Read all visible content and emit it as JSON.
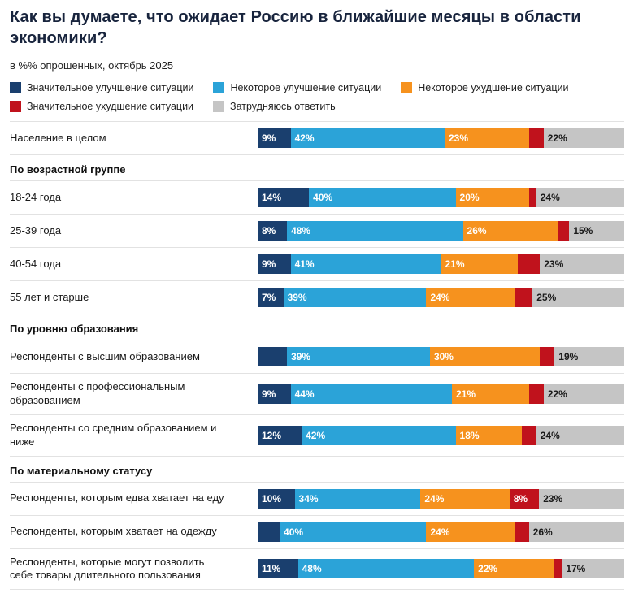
{
  "title": "Как вы думаете, что ожидает Россию в ближайшие месяцы в области экономики?",
  "subtitle": "в %% опрошенных, октябрь 2025",
  "legend": [
    {
      "label": "Значительное улучшение ситуации",
      "color": "#1a3f6e",
      "text_color": "#ffffff"
    },
    {
      "label": "Некоторое улучшение ситуации",
      "color": "#2ba3d8",
      "text_color": "#ffffff"
    },
    {
      "label": "Некоторое ухудшение ситуации",
      "color": "#f6921e",
      "text_color": "#ffffff"
    },
    {
      "label": "Значительное ухудшение ситуации",
      "color": "#c0121c",
      "text_color": "#ffffff"
    },
    {
      "label": "Затрудняюсь ответить",
      "color": "#c5c5c5",
      "text_color": "#1a1a1a"
    }
  ],
  "chart_data": {
    "type": "bar",
    "variant": "horizontal-stacked",
    "unit": "% of respondents",
    "xlim": [
      0,
      100
    ],
    "grid": false,
    "legend_position": "top",
    "series": [
      "Значительное улучшение ситуации",
      "Некоторое улучшение ситуации",
      "Некоторое ухудшение ситуации",
      "Значительное ухудшение ситуации",
      "Затрудняюсь ответить"
    ],
    "rows": [
      {
        "kind": "bar",
        "label": "Население в целом",
        "values": [
          9,
          42,
          23,
          4,
          22
        ],
        "segment_labels": [
          "9%",
          "42%",
          "23%",
          "",
          "22%"
        ]
      },
      {
        "kind": "section",
        "label": "По возрастной группе"
      },
      {
        "kind": "bar",
        "label": "18-24 года",
        "values": [
          14,
          40,
          20,
          2,
          24
        ],
        "segment_labels": [
          "14%",
          "40%",
          "20%",
          "",
          "24%"
        ]
      },
      {
        "kind": "bar",
        "label": "25-39 года",
        "values": [
          8,
          48,
          26,
          3,
          15
        ],
        "segment_labels": [
          "8%",
          "48%",
          "26%",
          "",
          "15%"
        ]
      },
      {
        "kind": "bar",
        "label": "40-54 года",
        "values": [
          9,
          41,
          21,
          6,
          23
        ],
        "segment_labels": [
          "9%",
          "41%",
          "21%",
          "",
          "23%"
        ]
      },
      {
        "kind": "bar",
        "label": "55 лет и старше",
        "values": [
          7,
          39,
          24,
          5,
          25
        ],
        "segment_labels": [
          "7%",
          "39%",
          "24%",
          "",
          "25%"
        ]
      },
      {
        "kind": "section",
        "label": "По уровню образования"
      },
      {
        "kind": "bar",
        "label": "Респонденты с высшим образованием",
        "values": [
          8,
          39,
          30,
          4,
          19
        ],
        "segment_labels": [
          "",
          "39%",
          "30%",
          "",
          "19%"
        ]
      },
      {
        "kind": "bar",
        "label": "Респонденты с профессиональным образованием",
        "values": [
          9,
          44,
          21,
          4,
          22
        ],
        "segment_labels": [
          "9%",
          "44%",
          "21%",
          "",
          "22%"
        ]
      },
      {
        "kind": "bar",
        "label": "Респонденты со средним образованием и ниже",
        "values": [
          12,
          42,
          18,
          4,
          24
        ],
        "segment_labels": [
          "12%",
          "42%",
          "18%",
          "",
          "24%"
        ]
      },
      {
        "kind": "section",
        "label": "По материальному статусу"
      },
      {
        "kind": "bar",
        "label": "Респонденты, которым едва хватает на еду",
        "values": [
          10,
          34,
          24,
          8,
          23
        ],
        "segment_labels": [
          "10%",
          "34%",
          "24%",
          "8%",
          "23%"
        ]
      },
      {
        "kind": "bar",
        "label": "Респонденты, которым хватает на одежду",
        "values": [
          6,
          40,
          24,
          4,
          26
        ],
        "segment_labels": [
          "",
          "40%",
          "24%",
          "",
          "26%"
        ]
      },
      {
        "kind": "bar",
        "label": "Респонденты, которые могут позволить себе товары длительного пользования",
        "values": [
          11,
          48,
          22,
          2,
          17
        ],
        "segment_labels": [
          "11%",
          "48%",
          "22%",
          "",
          "17%"
        ]
      }
    ]
  }
}
